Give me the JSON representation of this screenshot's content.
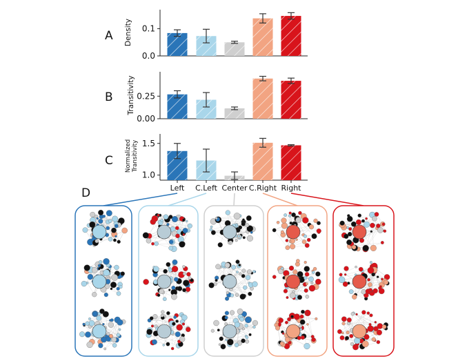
{
  "panel_letters": [
    "A",
    "B",
    "C",
    "D"
  ],
  "colors": {
    "Left": "#2a75b8",
    "C.Left": "#a9d6ea",
    "Center": "#cfcfcf",
    "C.Right": "#f2a482",
    "Right": "#d8141b"
  },
  "chart_data": [
    {
      "type": "bar",
      "panel": "A",
      "ylabel": "Density",
      "categories": [
        "Left",
        "C.Left",
        "Center",
        "C.Right",
        "Right"
      ],
      "values": [
        0.084,
        0.073,
        0.05,
        0.138,
        0.147
      ],
      "error": [
        0.012,
        0.025,
        0.004,
        0.017,
        0.012
      ],
      "ylim": [
        0,
        0.17
      ],
      "yticks": [
        "0.0",
        "0.1"
      ],
      "ytick_values": [
        0,
        0.1
      ],
      "hatch": true,
      "grid": false
    },
    {
      "type": "bar",
      "panel": "B",
      "ylabel": "Transitivity",
      "categories": [
        "Left",
        "C.Left",
        "Center",
        "C.Right",
        "Right"
      ],
      "values": [
        0.27,
        0.21,
        0.115,
        0.445,
        0.42
      ],
      "error": [
        0.04,
        0.08,
        0.015,
        0.025,
        0.03
      ],
      "ylim": [
        0,
        0.52
      ],
      "yticks": [
        "0.00",
        "0.25"
      ],
      "ytick_values": [
        0,
        0.25
      ],
      "hatch": true,
      "grid": false
    },
    {
      "type": "bar",
      "panel": "C",
      "ylabel": [
        "Normalized",
        "Transitivity"
      ],
      "categories": [
        "Left",
        "C.Left",
        "Center",
        "C.Right",
        "Right"
      ],
      "values": [
        1.38,
        1.23,
        0.99,
        1.51,
        1.47
      ],
      "error": [
        0.12,
        0.18,
        0.06,
        0.07,
        0.01
      ],
      "ylim": [
        0.92,
        1.65
      ],
      "yticks": [
        "1.0",
        "1.5"
      ],
      "ytick_values": [
        1.0,
        1.5
      ],
      "hatch": true,
      "grid": false
    }
  ]
}
